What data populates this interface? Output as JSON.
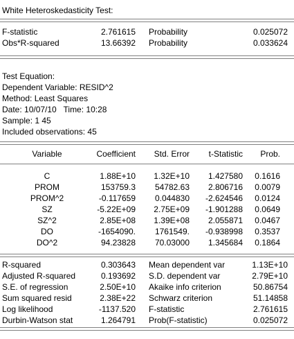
{
  "title": "White Heteroskedasticity Test:",
  "header_stats": [
    {
      "label": "F-statistic",
      "value": "2.761615",
      "prob_label": "Probability",
      "prob": "0.025072"
    },
    {
      "label": "Obs*R-squared",
      "value": "13.66392",
      "prob_label": "Probability",
      "prob": "0.033624"
    }
  ],
  "equation": {
    "heading": "Test Equation:",
    "dependent": "Dependent Variable: RESID^2",
    "method": "Method: Least Squares",
    "date": "Date: 10/07/10   Time: 10:28",
    "sample": "Sample: 1 45",
    "obs": "Included observations: 45"
  },
  "coef_table": {
    "headers": [
      "Variable",
      "Coefficient",
      "Std. Error",
      "t-Statistic",
      "Prob."
    ],
    "rows": [
      [
        "C",
        "1.88E+10",
        "1.32E+10",
        "1.427580",
        "0.1616"
      ],
      [
        "PROM",
        "153759.3",
        "54782.63",
        "2.806716",
        "0.0079"
      ],
      [
        "PROM^2",
        "-0.117659",
        "0.044830",
        "-2.624546",
        "0.0124"
      ],
      [
        "SZ",
        "-5.22E+09",
        "2.75E+09",
        "-1.901288",
        "0.0649"
      ],
      [
        "SZ^2",
        "2.85E+08",
        "1.39E+08",
        "2.055871",
        "0.0467"
      ],
      [
        "DO",
        "-1654090.",
        "1761549.",
        "-0.938998",
        "0.3537"
      ],
      [
        "DO^2",
        "94.23828",
        "70.03000",
        "1.345684",
        "0.1864"
      ]
    ]
  },
  "summary_stats": [
    [
      "R-squared",
      "0.303643",
      "Mean dependent var",
      "1.13E+10"
    ],
    [
      "Adjusted R-squared",
      "0.193692",
      "S.D. dependent var",
      "2.79E+10"
    ],
    [
      "S.E. of regression",
      "2.50E+10",
      "Akaike info criterion",
      "50.86754"
    ],
    [
      "Sum squared resid",
      "2.38E+22",
      "Schwarz criterion",
      "51.14858"
    ],
    [
      "Log likelihood",
      "-1137.520",
      "F-statistic",
      "2.761615"
    ],
    [
      "Durbin-Watson stat",
      "1.264791",
      "Prob(F-statistic)",
      "0.025072"
    ]
  ]
}
